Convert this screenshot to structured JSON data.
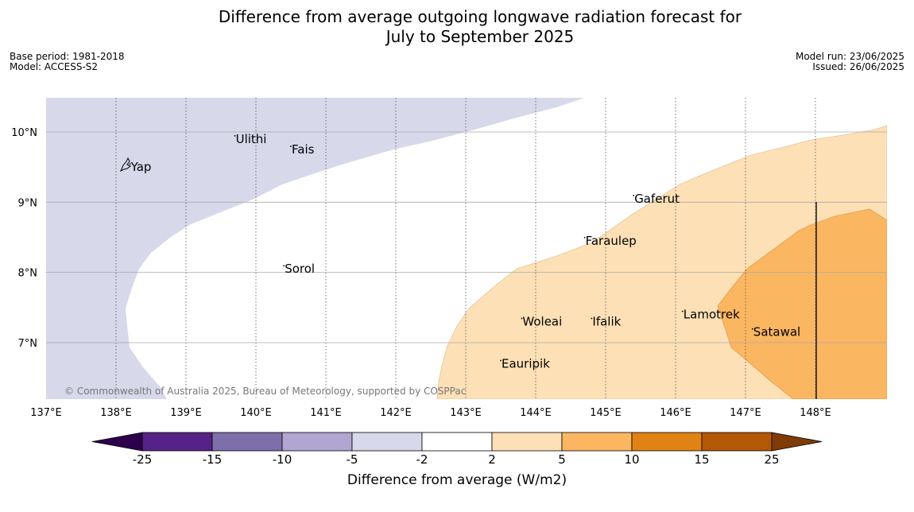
{
  "title_line1": "Difference from average outgoing longwave radiation forecast for",
  "title_line2": "July to September 2025",
  "meta_left": [
    "Base period: 1981-2018",
    "Model: ACCESS-S2"
  ],
  "meta_right": [
    "Model run: 23/06/2025",
    "Issued: 26/06/2025"
  ],
  "copyright": "© Commonwealth of Australia 2025, Bureau of Meteorology, supported by COSPPac",
  "map": {
    "lon_range": [
      137,
      149
    ],
    "lat_range": [
      6.2,
      10.5
    ],
    "lon_ticks": [
      "137°E",
      "138°E",
      "139°E",
      "140°E",
      "141°E",
      "142°E",
      "143°E",
      "144°E",
      "145°E",
      "146°E",
      "147°E",
      "148°E"
    ],
    "lat_ticks": [
      "7°N",
      "8°N",
      "9°N",
      "10°N"
    ],
    "places": [
      {
        "name": "Yap",
        "lon": 138.2,
        "lat": 9.5
      },
      {
        "name": "Ulithi",
        "lon": 139.7,
        "lat": 9.9
      },
      {
        "name": "Fais",
        "lon": 140.5,
        "lat": 9.75
      },
      {
        "name": "Gaferut",
        "lon": 145.4,
        "lat": 9.05
      },
      {
        "name": "Faraulep",
        "lon": 144.7,
        "lat": 8.45
      },
      {
        "name": "Sorol",
        "lon": 140.4,
        "lat": 8.05
      },
      {
        "name": "Lamotrek",
        "lon": 146.1,
        "lat": 7.4
      },
      {
        "name": "Woleai",
        "lon": 143.8,
        "lat": 7.3
      },
      {
        "name": "Ifalik",
        "lon": 144.8,
        "lat": 7.3
      },
      {
        "name": "Satawal",
        "lon": 147.1,
        "lat": 7.15
      },
      {
        "name": "Eauripik",
        "lon": 143.5,
        "lat": 6.7
      }
    ]
  },
  "colorbar": {
    "label": "Difference from average (W/m2)",
    "ticks": [
      "-25",
      "-15",
      "-10",
      "-5",
      "-2",
      "2",
      "5",
      "10",
      "15",
      "25"
    ],
    "colors": [
      "#552288",
      "#7e6ea9",
      "#b0a6d1",
      "#d7d8ea",
      "#ffffff",
      "#fde0b6",
      "#fbb661",
      "#e08214",
      "#b35806"
    ],
    "extend_low": "#2d004b",
    "extend_high": "#7f3b08"
  },
  "colors": {
    "light_purple": "#d7d8ea",
    "light_orange": "#fde0b6",
    "orange": "#fbb661"
  }
}
